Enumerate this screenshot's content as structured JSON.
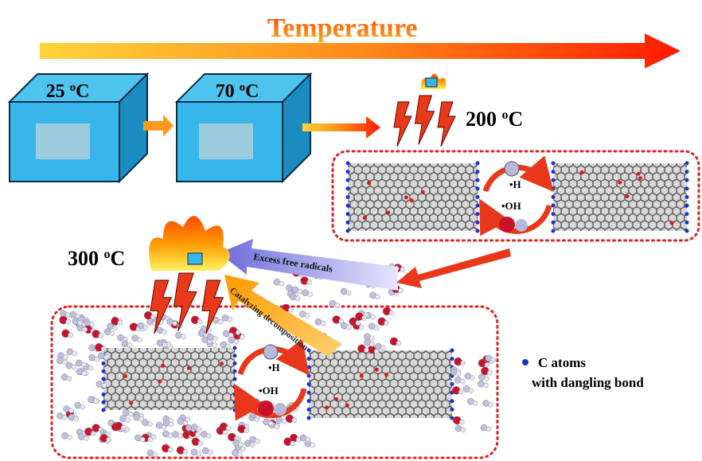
{
  "title": "Temperature",
  "stages": [
    {
      "number": "25",
      "degree": "o",
      "unit": "C"
    },
    {
      "number": "70",
      "degree": "o",
      "unit": "C"
    },
    {
      "number": "200",
      "degree": "o",
      "unit": "C"
    },
    {
      "number": "300",
      "degree": "o",
      "unit": "C"
    }
  ],
  "radicals": {
    "h": "•H",
    "oh": "•OH"
  },
  "arrows": {
    "excess": "Excess free radicals",
    "catalyzing": "Catalyzing decomposition"
  },
  "legend": {
    "line1": "C atoms",
    "line2": "with dangling bond"
  }
}
